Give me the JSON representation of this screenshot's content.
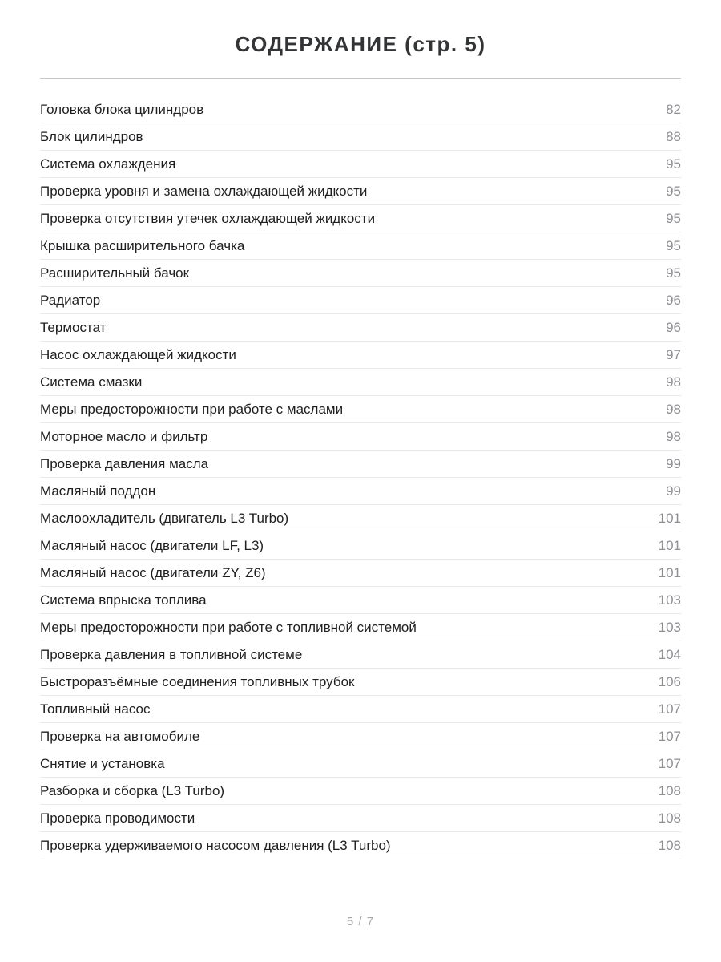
{
  "header": {
    "title": "СОДЕРЖАНИЕ (стр. 5)"
  },
  "toc": {
    "items": [
      {
        "label": "Головка блока цилиндров",
        "page": "82"
      },
      {
        "label": "Блок цилиндров",
        "page": "88"
      },
      {
        "label": "Система охлаждения",
        "page": "95"
      },
      {
        "label": "Проверка уровня и замена охлаждающей жидкости",
        "page": "95"
      },
      {
        "label": "Проверка отсутствия утечек охлаждающей жидкости",
        "page": "95"
      },
      {
        "label": "Крышка расширительного бачка",
        "page": "95"
      },
      {
        "label": "Расширительный бачок",
        "page": "95"
      },
      {
        "label": "Радиатор",
        "page": "96"
      },
      {
        "label": "Термостат",
        "page": "96"
      },
      {
        "label": "Насос охлаждающей жидкости",
        "page": "97"
      },
      {
        "label": "Система смазки",
        "page": "98"
      },
      {
        "label": "Меры предосторожности при работе с маслами",
        "page": "98"
      },
      {
        "label": "Моторное масло и фильтр",
        "page": "98"
      },
      {
        "label": "Проверка давления масла",
        "page": "99"
      },
      {
        "label": "Масляный поддон",
        "page": "99"
      },
      {
        "label": "Маслоохладитель (двигатель L3 Turbo)",
        "page": "101"
      },
      {
        "label": "Масляный насос (двигатели LF, L3)",
        "page": "101"
      },
      {
        "label": "Масляный насос (двигатели ZY, Z6)",
        "page": "101"
      },
      {
        "label": "Система впрыска топлива",
        "page": "103"
      },
      {
        "label": "Меры предосторожности при работе с топливной системой",
        "page": "103"
      },
      {
        "label": "Проверка давления в топливной системе",
        "page": "104"
      },
      {
        "label": "Быстроразъёмные соединения топливных трубок",
        "page": "106"
      },
      {
        "label": "Топливный насос",
        "page": "107"
      },
      {
        "label": "Проверка на автомобиле",
        "page": "107"
      },
      {
        "label": "Снятие и установка",
        "page": "107"
      },
      {
        "label": "Разборка и сборка (L3 Turbo)",
        "page": "108"
      },
      {
        "label": "Проверка проводимости",
        "page": "108"
      },
      {
        "label": "Проверка удерживаемого насосом давления (L3 Turbo)",
        "page": "108"
      }
    ]
  },
  "footer": {
    "pagination": "5 / 7"
  }
}
